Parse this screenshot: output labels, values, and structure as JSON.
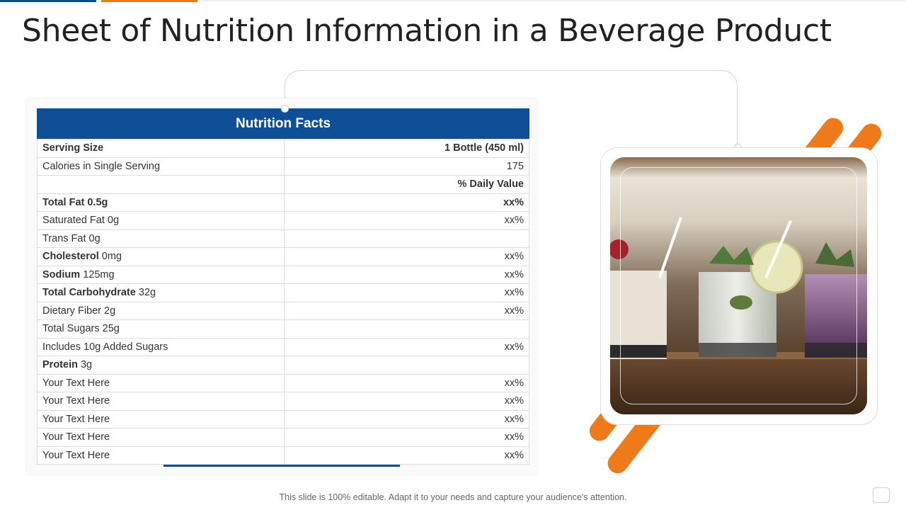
{
  "title": "Sheet of Nutrition Information in a Beverage Product",
  "nutrition_table": {
    "header": "Nutrition Facts",
    "rows": [
      {
        "label_bold": "Serving Size",
        "label": "",
        "value": "1 Bottle (450 ml)",
        "value_bold": true
      },
      {
        "label_bold": "",
        "label": "Calories in Single Serving",
        "value": "175",
        "value_bold": false
      },
      {
        "label_bold": "",
        "label": "",
        "value": "% Daily Value",
        "value_bold": true
      },
      {
        "label_bold": "Total Fat 0.5g",
        "label": "",
        "value": "xx%",
        "value_bold": true
      },
      {
        "label_bold": "",
        "label": "Saturated Fat 0g",
        "value": "xx%",
        "value_bold": false
      },
      {
        "label_bold": "",
        "label": "Trans Fat 0g",
        "value": "",
        "value_bold": false
      },
      {
        "label_bold": "Cholesterol",
        "label": " 0mg",
        "value": "xx%",
        "value_bold": false
      },
      {
        "label_bold": "Sodium",
        "label": " 125mg",
        "value": "xx%",
        "value_bold": false
      },
      {
        "label_bold": "Total Carbohydrate",
        "label": " 32g",
        "value": "xx%",
        "value_bold": false
      },
      {
        "label_bold": "",
        "label": "Dietary Fiber 2g",
        "value": "xx%",
        "value_bold": false
      },
      {
        "label_bold": "",
        "label": "Total Sugars 25g",
        "value": "",
        "value_bold": false
      },
      {
        "label_bold": "",
        "label": "Includes 10g Added Sugars",
        "value": "xx%",
        "value_bold": false
      },
      {
        "label_bold": "Protein",
        "label": " 3g",
        "value": "",
        "value_bold": false
      },
      {
        "label_bold": "",
        "label": "Your Text Here",
        "value": "xx%",
        "value_bold": false
      },
      {
        "label_bold": "",
        "label": "Your Text Here",
        "value": "xx%",
        "value_bold": false
      },
      {
        "label_bold": "",
        "label": "Your Text Here",
        "value": "xx%",
        "value_bold": false
      },
      {
        "label_bold": "",
        "label": "Your Text Here",
        "value": "xx%",
        "value_bold": false
      },
      {
        "label_bold": "",
        "label": "Your Text Here",
        "value": "xx%",
        "value_bold": false
      }
    ]
  },
  "image": {
    "name": "beverage-glasses-photo"
  },
  "footer": "This slide is 100% editable. Adapt it to your needs and capture your audience's attention.",
  "colors": {
    "brand_blue": "#0e4f98",
    "accent_orange": "#ef7a1a"
  }
}
